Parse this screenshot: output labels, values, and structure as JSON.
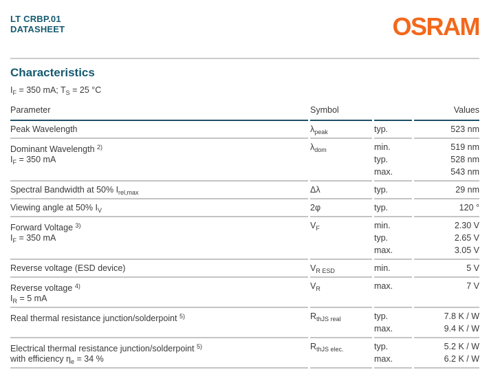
{
  "header": {
    "product": "LT CRBP.01",
    "doc_type": "DATASHEET",
    "brand": "OSRAM"
  },
  "colors": {
    "teal": "#155A70",
    "orange": "#F2681C",
    "text": "#3A3A3A",
    "header_line": "#1E4F68",
    "row_line": "#C4C4C4",
    "divider": "#CBCBCB"
  },
  "section": {
    "title": "Characteristics",
    "conditions": [
      {
        "t": "I"
      },
      {
        "t": "F",
        "s": "sub"
      },
      {
        "t": " = 350 mA; T"
      },
      {
        "t": "S",
        "s": "sub"
      },
      {
        "t": " = 25 °C"
      }
    ]
  },
  "table": {
    "headers": {
      "parameter": "Parameter",
      "symbol": "Symbol",
      "values": "Values"
    },
    "rows": [
      {
        "parameter": [
          [
            {
              "t": "Peak Wavelength"
            }
          ]
        ],
        "symbol": [
          {
            "t": "λ"
          },
          {
            "t": "peak",
            "s": "sub"
          }
        ],
        "entries": [
          {
            "qualifier": "typ.",
            "value": "523 nm"
          }
        ]
      },
      {
        "parameter": [
          [
            {
              "t": "Dominant Wavelength "
            },
            {
              "t": "2)",
              "s": "sup"
            }
          ],
          [
            {
              "t": "I"
            },
            {
              "t": "F",
              "s": "sub"
            },
            {
              "t": " = 350 mA"
            }
          ]
        ],
        "symbol": [
          {
            "t": "λ"
          },
          {
            "t": "dom",
            "s": "sub"
          }
        ],
        "entries": [
          {
            "qualifier": "min.",
            "value": "519 nm"
          },
          {
            "qualifier": "typ.",
            "value": "528 nm"
          },
          {
            "qualifier": "max.",
            "value": "543 nm"
          }
        ]
      },
      {
        "parameter": [
          [
            {
              "t": "Spectral Bandwidth at 50% I"
            },
            {
              "t": "rel,max",
              "s": "sub"
            }
          ]
        ],
        "symbol": [
          {
            "t": "Δλ"
          }
        ],
        "entries": [
          {
            "qualifier": "typ.",
            "value": "29 nm"
          }
        ]
      },
      {
        "parameter": [
          [
            {
              "t": "Viewing angle at 50% I"
            },
            {
              "t": "V",
              "s": "sub"
            }
          ]
        ],
        "symbol": [
          {
            "t": "2φ"
          }
        ],
        "entries": [
          {
            "qualifier": "typ.",
            "value": "120 °"
          }
        ]
      },
      {
        "parameter": [
          [
            {
              "t": "Forward Voltage "
            },
            {
              "t": "3)",
              "s": "sup"
            }
          ],
          [
            {
              "t": "I"
            },
            {
              "t": "F",
              "s": "sub"
            },
            {
              "t": " = 350 mA"
            }
          ]
        ],
        "symbol": [
          {
            "t": "V"
          },
          {
            "t": "F",
            "s": "sub"
          }
        ],
        "entries": [
          {
            "qualifier": "min.",
            "value": "2.30 V"
          },
          {
            "qualifier": "typ.",
            "value": "2.65 V"
          },
          {
            "qualifier": "max.",
            "value": "3.05 V"
          }
        ]
      },
      {
        "parameter": [
          [
            {
              "t": "Reverse voltage (ESD device)"
            }
          ]
        ],
        "symbol": [
          {
            "t": "V"
          },
          {
            "t": "R ESD",
            "s": "sub"
          }
        ],
        "entries": [
          {
            "qualifier": "min.",
            "value": "5 V"
          }
        ]
      },
      {
        "parameter": [
          [
            {
              "t": "Reverse voltage "
            },
            {
              "t": "4)",
              "s": "sup"
            }
          ],
          [
            {
              "t": "I"
            },
            {
              "t": "R",
              "s": "sub"
            },
            {
              "t": " = 5 mA"
            }
          ]
        ],
        "symbol": [
          {
            "t": "V"
          },
          {
            "t": "R",
            "s": "sub"
          }
        ],
        "entries": [
          {
            "qualifier": "max.",
            "value": "7 V"
          }
        ]
      },
      {
        "parameter": [
          [
            {
              "t": "Real thermal resistance junction/solderpoint "
            },
            {
              "t": "5)",
              "s": "sup"
            }
          ]
        ],
        "symbol": [
          {
            "t": "R"
          },
          {
            "t": "thJS real",
            "s": "sub"
          }
        ],
        "entries": [
          {
            "qualifier": "typ.",
            "value": "7.8 K / W"
          },
          {
            "qualifier": "max.",
            "value": "9.4 K / W"
          }
        ]
      },
      {
        "parameter": [
          [
            {
              "t": "Electrical thermal resistance junction/solderpoint "
            },
            {
              "t": "5)",
              "s": "sup"
            }
          ],
          [
            {
              "t": "with efficiency η"
            },
            {
              "t": "e",
              "s": "sub"
            },
            {
              "t": " = 34 %"
            }
          ]
        ],
        "symbol": [
          {
            "t": "R"
          },
          {
            "t": "thJS elec.",
            "s": "sub"
          }
        ],
        "entries": [
          {
            "qualifier": "typ.",
            "value": "5.2 K / W"
          },
          {
            "qualifier": "max.",
            "value": "6.2 K / W"
          }
        ]
      }
    ]
  }
}
